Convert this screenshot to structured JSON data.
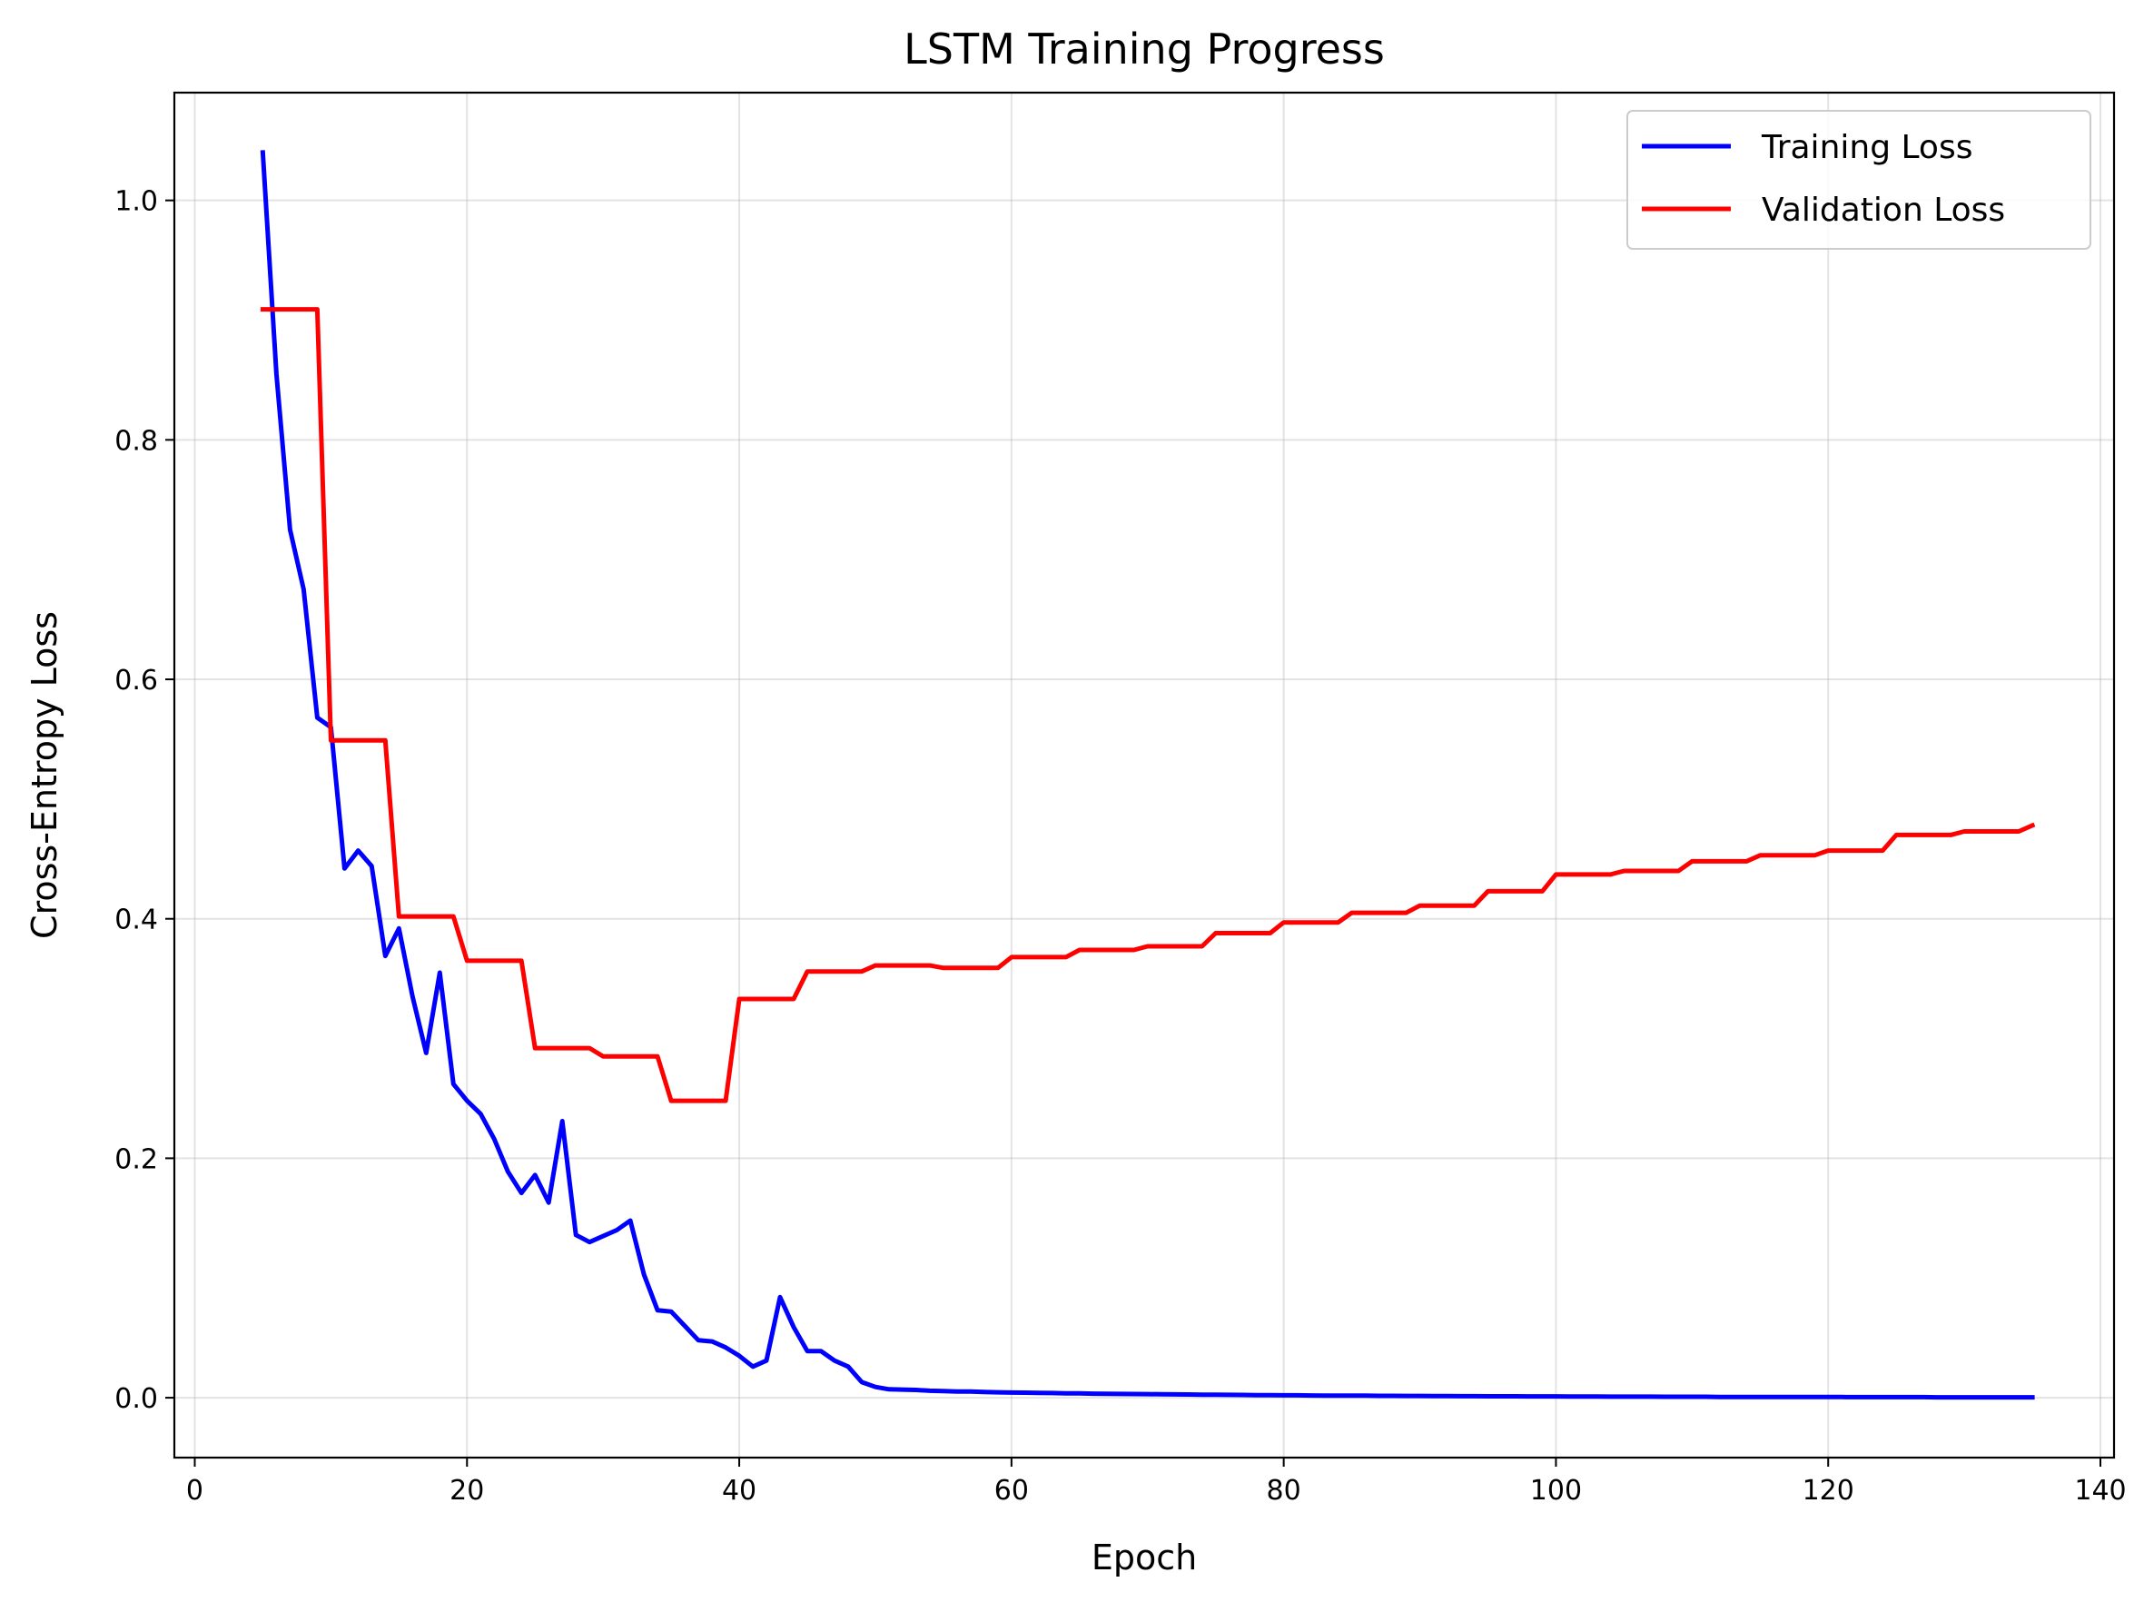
{
  "chart_data": {
    "type": "line",
    "title": "LSTM Training Progress",
    "xlabel": "Epoch",
    "ylabel": "Cross-Entropy Loss",
    "xlim": [
      -1.5,
      141
    ],
    "ylim": [
      -0.05,
      1.09
    ],
    "xticks": [
      0,
      20,
      40,
      60,
      80,
      100,
      120,
      140
    ],
    "yticks": [
      0.0,
      0.2,
      0.4,
      0.6,
      0.8,
      1.0
    ],
    "xtick_labels": [
      "0",
      "20",
      "40",
      "60",
      "80",
      "100",
      "120",
      "140"
    ],
    "ytick_labels": [
      "0.0",
      "0.2",
      "0.4",
      "0.6",
      "0.8",
      "1.0"
    ],
    "grid": true,
    "legend_position": "top-right",
    "x": [
      5,
      6,
      7,
      8,
      9,
      10,
      11,
      12,
      13,
      14,
      15,
      16,
      17,
      18,
      19,
      20,
      21,
      22,
      23,
      24,
      25,
      26,
      27,
      28,
      29,
      30,
      31,
      32,
      33,
      34,
      35,
      36,
      37,
      38,
      39,
      40,
      41,
      42,
      43,
      44,
      45,
      46,
      47,
      48,
      49,
      50,
      51,
      52,
      53,
      54,
      55,
      56,
      57,
      58,
      59,
      60,
      61,
      62,
      63,
      64,
      65,
      66,
      67,
      68,
      69,
      70,
      71,
      72,
      73,
      74,
      75,
      76,
      77,
      78,
      79,
      80,
      81,
      82,
      83,
      84,
      85,
      86,
      87,
      88,
      89,
      90,
      91,
      92,
      93,
      94,
      95,
      96,
      97,
      98,
      99,
      100,
      101,
      102,
      103,
      104,
      105,
      106,
      107,
      108,
      109,
      110,
      111,
      112,
      113,
      114,
      115,
      116,
      117,
      118,
      119,
      120,
      121,
      122,
      123,
      124,
      125,
      126,
      127,
      128,
      129,
      130,
      131,
      132,
      133,
      134,
      135
    ],
    "series": [
      {
        "name": "Training Loss",
        "color": "#0000ff",
        "values": [
          1.04,
          0.855,
          0.725,
          0.675,
          0.568,
          0.56,
          0.442,
          0.457,
          0.444,
          0.369,
          0.392,
          0.335,
          0.288,
          0.355,
          0.262,
          0.248,
          0.237,
          0.216,
          0.189,
          0.171,
          0.186,
          0.163,
          0.231,
          0.136,
          0.13,
          0.135,
          0.14,
          0.148,
          0.103,
          0.073,
          0.072,
          0.06,
          0.048,
          0.047,
          0.042,
          0.035,
          0.026,
          0.031,
          0.084,
          0.059,
          0.039,
          0.039,
          0.031,
          0.026,
          0.013,
          0.009,
          0.007,
          0.0068,
          0.0065,
          0.0058,
          0.0055,
          0.0052,
          0.0052,
          0.0048,
          0.0045,
          0.0043,
          0.0042,
          0.004,
          0.0039,
          0.0037,
          0.0036,
          0.0034,
          0.0033,
          0.0032,
          0.0031,
          0.003,
          0.0029,
          0.0028,
          0.0027,
          0.0026,
          0.0025,
          0.0024,
          0.0023,
          0.0022,
          0.0021,
          0.002,
          0.002,
          0.0019,
          0.0018,
          0.0018,
          0.0017,
          0.0017,
          0.0016,
          0.0016,
          0.0015,
          0.0015,
          0.0014,
          0.0014,
          0.0013,
          0.0013,
          0.0012,
          0.0012,
          0.0012,
          0.0011,
          0.0011,
          0.0011,
          0.001,
          0.001,
          0.001,
          0.0009,
          0.0009,
          0.0009,
          0.0009,
          0.0008,
          0.0008,
          0.0008,
          0.0008,
          0.0007,
          0.0007,
          0.0007,
          0.0007,
          0.0007,
          0.0006,
          0.0006,
          0.0006,
          0.0006,
          0.0006,
          0.0005,
          0.0005,
          0.0005,
          0.0005,
          0.0005,
          0.0005,
          0.0004,
          0.0004,
          0.0004,
          0.0004,
          0.0004,
          0.0004,
          0.0004,
          0.0004
        ]
      },
      {
        "name": "Validation Loss",
        "color": "#ff0000",
        "values": [
          0.909,
          0.909,
          0.909,
          0.909,
          0.909,
          0.549,
          0.549,
          0.549,
          0.549,
          0.549,
          0.402,
          0.402,
          0.402,
          0.402,
          0.402,
          0.365,
          0.365,
          0.365,
          0.365,
          0.365,
          0.292,
          0.292,
          0.292,
          0.292,
          0.292,
          0.285,
          0.285,
          0.285,
          0.285,
          0.285,
          0.248,
          0.248,
          0.248,
          0.248,
          0.248,
          0.333,
          0.333,
          0.333,
          0.333,
          0.333,
          0.356,
          0.356,
          0.356,
          0.356,
          0.356,
          0.361,
          0.361,
          0.361,
          0.361,
          0.361,
          0.359,
          0.359,
          0.359,
          0.359,
          0.359,
          0.368,
          0.368,
          0.368,
          0.368,
          0.368,
          0.374,
          0.374,
          0.374,
          0.374,
          0.374,
          0.377,
          0.377,
          0.377,
          0.377,
          0.377,
          0.388,
          0.388,
          0.388,
          0.388,
          0.388,
          0.397,
          0.397,
          0.397,
          0.397,
          0.397,
          0.405,
          0.405,
          0.405,
          0.405,
          0.405,
          0.411,
          0.411,
          0.411,
          0.411,
          0.411,
          0.423,
          0.423,
          0.423,
          0.423,
          0.423,
          0.437,
          0.437,
          0.437,
          0.437,
          0.437,
          0.44,
          0.44,
          0.44,
          0.44,
          0.44,
          0.448,
          0.448,
          0.448,
          0.448,
          0.448,
          0.453,
          0.453,
          0.453,
          0.453,
          0.453,
          0.457,
          0.457,
          0.457,
          0.457,
          0.457,
          0.47,
          0.47,
          0.47,
          0.47,
          0.47,
          0.473,
          0.473,
          0.473,
          0.473,
          0.473,
          0.478
        ]
      }
    ]
  }
}
